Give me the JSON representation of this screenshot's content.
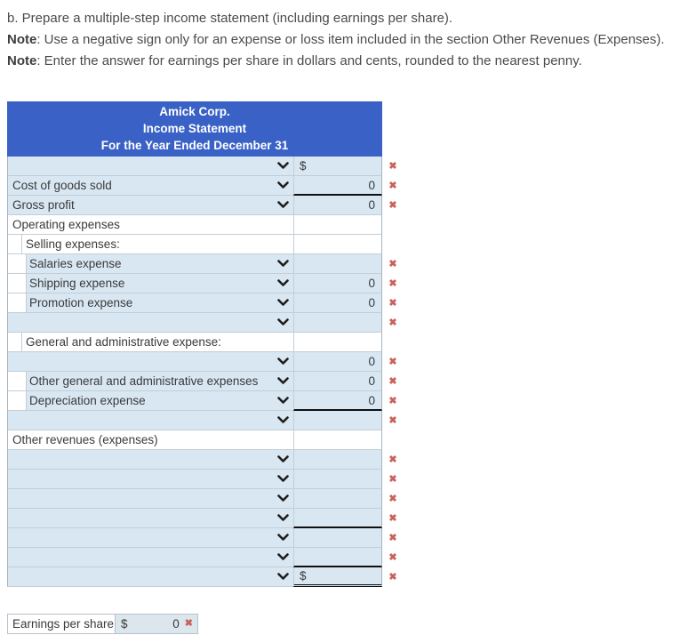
{
  "instructions": {
    "line1": "b. Prepare a multiple-step income statement (including earnings per share).",
    "note1_label": "Note",
    "note1_text": ": Use a negative sign only for an expense or loss item included in the section Other Revenues (Expenses).",
    "note2_label": "Note",
    "note2_text": ": Enter the answer for earnings per share in dollars and cents, rounded to the nearest penny."
  },
  "statement": {
    "currency": "$",
    "header": {
      "company": "Amick Corp.",
      "title": "Income Statement",
      "period": "For the Year Ended December 31"
    },
    "rows": [
      {
        "label": "",
        "kind": "select",
        "indent": 0,
        "amount": "",
        "show_dollar": true,
        "has_error": true,
        "rule": "none"
      },
      {
        "label": "Cost of goods sold",
        "kind": "select",
        "indent": 0,
        "amount": "0",
        "show_dollar": false,
        "has_error": true,
        "rule": "single"
      },
      {
        "label": "Gross profit",
        "kind": "select",
        "indent": 0,
        "amount": "0",
        "show_dollar": false,
        "has_error": true,
        "rule": "none"
      },
      {
        "label": "Operating expenses",
        "kind": "static",
        "indent": 0,
        "amount": "",
        "show_dollar": false,
        "has_error": false,
        "rule": "none"
      },
      {
        "label": "Selling expenses:",
        "kind": "static",
        "indent": 1,
        "amount": "",
        "show_dollar": false,
        "has_error": false,
        "rule": "none"
      },
      {
        "label": "Salaries expense",
        "kind": "select",
        "indent": 2,
        "amount": "",
        "show_dollar": false,
        "has_error": true,
        "rule": "none"
      },
      {
        "label": "Shipping expense",
        "kind": "select",
        "indent": 2,
        "amount": "0",
        "show_dollar": false,
        "has_error": true,
        "rule": "none"
      },
      {
        "label": "Promotion expense",
        "kind": "select",
        "indent": 2,
        "amount": "0",
        "show_dollar": false,
        "has_error": true,
        "rule": "none"
      },
      {
        "label": "",
        "kind": "select",
        "indent": 0,
        "amount": "",
        "show_dollar": false,
        "has_error": true,
        "rule": "none"
      },
      {
        "label": "General and administrative expense:",
        "kind": "static",
        "indent": 1,
        "amount": "",
        "show_dollar": false,
        "has_error": false,
        "rule": "none"
      },
      {
        "label": "",
        "kind": "select",
        "indent": 0,
        "amount": "0",
        "show_dollar": false,
        "has_error": true,
        "rule": "none"
      },
      {
        "label": "Other general and administrative expenses",
        "kind": "select",
        "indent": 2,
        "amount": "0",
        "show_dollar": false,
        "has_error": true,
        "rule": "none"
      },
      {
        "label": "Depreciation expense",
        "kind": "select",
        "indent": 2,
        "amount": "0",
        "show_dollar": false,
        "has_error": true,
        "rule": "single"
      },
      {
        "label": "",
        "kind": "select",
        "indent": 0,
        "amount": "",
        "show_dollar": false,
        "has_error": true,
        "rule": "none"
      },
      {
        "label": "Other revenues (expenses)",
        "kind": "static",
        "indent": 0,
        "amount": "",
        "show_dollar": false,
        "has_error": false,
        "rule": "none"
      },
      {
        "label": "",
        "kind": "select",
        "indent": 0,
        "amount": "",
        "show_dollar": false,
        "has_error": true,
        "rule": "none"
      },
      {
        "label": "",
        "kind": "select",
        "indent": 0,
        "amount": "",
        "show_dollar": false,
        "has_error": true,
        "rule": "none"
      },
      {
        "label": "",
        "kind": "select",
        "indent": 0,
        "amount": "",
        "show_dollar": false,
        "has_error": true,
        "rule": "none"
      },
      {
        "label": "",
        "kind": "select",
        "indent": 0,
        "amount": "",
        "show_dollar": false,
        "has_error": true,
        "rule": "single"
      },
      {
        "label": "",
        "kind": "select",
        "indent": 0,
        "amount": "",
        "show_dollar": false,
        "has_error": true,
        "rule": "none"
      },
      {
        "label": "",
        "kind": "select",
        "indent": 0,
        "amount": "",
        "show_dollar": false,
        "has_error": true,
        "rule": "single"
      },
      {
        "label": "",
        "kind": "select",
        "indent": 0,
        "amount": "",
        "show_dollar": true,
        "has_error": true,
        "rule": "double"
      }
    ]
  },
  "eps": {
    "label": "Earnings per share",
    "currency": "$",
    "value": "0"
  },
  "icons": {
    "dropdown": "chevron-down-icon",
    "error_glyph": "✖"
  },
  "colors": {
    "header_bg": "#3a62c6",
    "row_bg": "#d8e7f2",
    "error": "#c9625b",
    "rule": "#101010"
  }
}
